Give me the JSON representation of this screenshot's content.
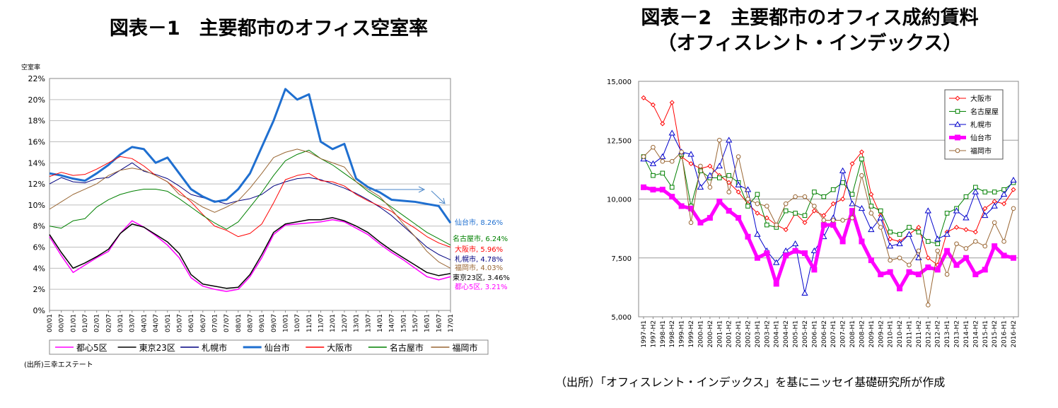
{
  "chart_data": [
    {
      "type": "line",
      "title": "図表－1　主要都市のオフィス空室率",
      "ylabel": "空室率",
      "ylim": [
        0,
        22
      ],
      "yticks": [
        "0%",
        "2%",
        "4%",
        "6%",
        "8%",
        "10%",
        "12%",
        "14%",
        "16%",
        "18%",
        "20%",
        "22%"
      ],
      "x": [
        "00/01",
        "00/07",
        "01/01",
        "01/07",
        "02/01",
        "02/07",
        "03/01",
        "03/07",
        "04/01",
        "04/07",
        "05/01",
        "05/07",
        "06/01",
        "06/07",
        "07/01",
        "07/07",
        "08/01",
        "08/07",
        "09/01",
        "09/07",
        "10/01",
        "10/07",
        "11/01",
        "11/07",
        "12/01",
        "12/07",
        "13/01",
        "13/07",
        "14/01",
        "14/07",
        "15/01",
        "15/07",
        "16/01",
        "16/07",
        "17/01"
      ],
      "legend_position": "bottom",
      "source": "(出所)三幸エステート",
      "series": [
        {
          "name": "都心5区",
          "color": "#ff00ff",
          "end_label": "都心5区, 3.21%",
          "values": [
            7.0,
            5.2,
            3.6,
            4.3,
            5.0,
            5.6,
            7.3,
            8.5,
            7.9,
            7.1,
            6.2,
            5.0,
            3.1,
            2.3,
            2.0,
            1.8,
            2.0,
            3.2,
            5.0,
            7.2,
            8.1,
            8.2,
            8.3,
            8.4,
            8.6,
            8.4,
            7.8,
            7.2,
            6.3,
            5.5,
            4.8,
            4.0,
            3.2,
            2.9,
            3.2
          ]
        },
        {
          "name": "東京23区",
          "color": "#000000",
          "end_label": "東京23区, 3.46%",
          "values": [
            7.2,
            5.5,
            4.0,
            4.5,
            5.1,
            5.8,
            7.3,
            8.2,
            7.9,
            7.2,
            6.5,
            5.4,
            3.4,
            2.5,
            2.3,
            2.1,
            2.2,
            3.4,
            5.3,
            7.4,
            8.2,
            8.4,
            8.6,
            8.6,
            8.8,
            8.5,
            8.0,
            7.4,
            6.5,
            5.7,
            5.0,
            4.3,
            3.6,
            3.3,
            3.5
          ]
        },
        {
          "name": "札幌市",
          "color": "#000080",
          "end_label": "札幌市, 4.78%",
          "values": [
            12.0,
            12.6,
            12.2,
            12.1,
            12.5,
            12.6,
            13.3,
            14.0,
            13.2,
            12.9,
            12.5,
            11.8,
            11.0,
            10.7,
            10.4,
            10.1,
            10.4,
            10.6,
            11.0,
            11.8,
            12.2,
            12.5,
            12.6,
            12.4,
            12.0,
            11.6,
            11.1,
            10.5,
            9.8,
            9.0,
            8.0,
            7.0,
            6.0,
            5.3,
            4.8
          ]
        },
        {
          "name": "仙台市",
          "color": "#1f6fd0",
          "end_label": "仙台市, 8.26%",
          "values": [
            13.0,
            12.8,
            12.5,
            12.3,
            13.0,
            13.8,
            14.8,
            15.5,
            15.3,
            14.0,
            14.5,
            13.0,
            11.5,
            10.8,
            10.3,
            10.5,
            11.5,
            13.0,
            15.5,
            18.0,
            21.0,
            20.0,
            20.5,
            16.0,
            15.3,
            15.8,
            12.5,
            11.7,
            11.2,
            10.5,
            10.4,
            10.3,
            10.1,
            9.9,
            8.3
          ]
        },
        {
          "name": "大阪市",
          "color": "#ff0000",
          "end_label": "大阪市, 5.96%",
          "values": [
            12.7,
            13.1,
            12.8,
            12.9,
            13.4,
            14.0,
            14.6,
            14.4,
            13.7,
            12.8,
            12.2,
            11.3,
            10.3,
            9.1,
            8.0,
            7.6,
            7.0,
            7.3,
            8.2,
            10.2,
            12.4,
            12.8,
            13.0,
            12.3,
            12.2,
            11.8,
            11.0,
            10.4,
            9.9,
            9.4,
            8.5,
            7.8,
            7.0,
            6.4,
            6.0
          ]
        },
        {
          "name": "名古屋市",
          "color": "#008000",
          "end_label": "名古屋市, 6.24%",
          "values": [
            8.0,
            7.8,
            8.5,
            8.7,
            9.8,
            10.5,
            11.0,
            11.3,
            11.5,
            11.5,
            11.3,
            10.6,
            9.8,
            9.0,
            8.3,
            7.7,
            8.4,
            9.8,
            11.2,
            12.8,
            14.2,
            14.8,
            15.2,
            14.4,
            13.8,
            13.0,
            12.2,
            11.3,
            10.6,
            9.8,
            9.0,
            8.2,
            7.4,
            6.8,
            6.2
          ]
        },
        {
          "name": "福岡市",
          "color": "#996633",
          "end_label": "福岡市, 4.03%",
          "values": [
            9.6,
            10.3,
            11.0,
            11.5,
            12.0,
            12.8,
            13.3,
            13.5,
            13.3,
            12.8,
            12.2,
            11.0,
            10.5,
            9.8,
            9.3,
            9.8,
            10.4,
            11.6,
            13.0,
            14.5,
            15.0,
            15.3,
            15.0,
            14.4,
            14.0,
            13.6,
            12.2,
            11.5,
            10.8,
            9.6,
            8.2,
            7.0,
            5.6,
            4.6,
            4.0
          ]
        }
      ]
    },
    {
      "type": "line",
      "title": "図表－2　主要都市のオフィス成約賃料",
      "subtitle": "（オフィスレント・インデックス）",
      "ylim": [
        5000,
        15000
      ],
      "yticks": [
        "5,000",
        "7,500",
        "10,000",
        "12,500",
        "15,000"
      ],
      "x": [
        "1997-H1",
        "1997-H2",
        "1998-H1",
        "1998-H2",
        "1999-H1",
        "1999-H2",
        "2000-H1",
        "2000-H2",
        "2001-H1",
        "2001-H2",
        "2002-H1",
        "2002-H2",
        "2003-H1",
        "2003-H2",
        "2004-H1",
        "2004-H2",
        "2005-H1",
        "2005-H2",
        "2006-H1",
        "2006-H2",
        "2007-H1",
        "2007-H2",
        "2008-H1",
        "2008-H2",
        "2009-H1",
        "2009-H2",
        "2010-H1",
        "2010-H2",
        "2011-H1",
        "2011-H2",
        "2012-H1",
        "2012-H2",
        "2013-H1",
        "2013-H2",
        "2014-H1",
        "2014-H2",
        "2015-H1",
        "2015-H2",
        "2016-H1",
        "2016-H2"
      ],
      "legend_position": "top-right",
      "source": "（出所）「オフィスレント・インデックス」を基にニッセイ基礎研究所が作成",
      "series": [
        {
          "name": "大阪市",
          "color": "#ff0000",
          "marker": "diamond",
          "values": [
            14300,
            14000,
            13200,
            14100,
            11800,
            11500,
            11300,
            11400,
            11000,
            10700,
            10300,
            9800,
            9400,
            9200,
            8900,
            8700,
            9400,
            9000,
            9500,
            9300,
            9800,
            10000,
            11500,
            12000,
            10200,
            9300,
            8300,
            8200,
            8500,
            8800,
            7500,
            7200,
            8600,
            8800,
            8700,
            8600,
            9600,
            9900,
            9800,
            10400
          ]
        },
        {
          "name": "名古屋屋",
          "color": "#008000",
          "marker": "square",
          "values": [
            11800,
            11000,
            11100,
            10500,
            11900,
            9700,
            11200,
            10900,
            10900,
            11000,
            10700,
            9700,
            10200,
            8900,
            8800,
            9500,
            9400,
            9300,
            10300,
            10100,
            10400,
            10700,
            10200,
            11700,
            9700,
            9500,
            8600,
            8500,
            8800,
            8600,
            8200,
            8100,
            9400,
            9600,
            10100,
            10500,
            10300,
            10300,
            10400,
            10700
          ]
        },
        {
          "name": "札幌市",
          "color": "#0000cc",
          "marker": "triangle",
          "values": [
            11700,
            11500,
            11800,
            12800,
            12000,
            11900,
            10500,
            11000,
            11400,
            12500,
            10600,
            10400,
            8500,
            7800,
            7300,
            7800,
            8100,
            6000,
            7800,
            8400,
            9200,
            11200,
            9800,
            9600,
            8700,
            9200,
            8000,
            8100,
            8500,
            7500,
            9500,
            8300,
            8500,
            9500,
            9200,
            10300,
            9300,
            9700,
            10200,
            10800
          ]
        },
        {
          "name": "仙台市",
          "color": "#ff00ff",
          "marker": "square",
          "values": [
            10500,
            10400,
            10400,
            10100,
            9700,
            9600,
            9000,
            9200,
            9900,
            9500,
            9200,
            8400,
            7500,
            7700,
            6400,
            7600,
            7800,
            7700,
            7000,
            8900,
            8900,
            8200,
            9500,
            8200,
            7400,
            6800,
            6900,
            6200,
            6900,
            6800,
            7100,
            7000,
            7800,
            7200,
            7500,
            6800,
            7000,
            8000,
            7600,
            7500
          ]
        },
        {
          "name": "福岡市",
          "color": "#996633",
          "marker": "circle",
          "values": [
            11800,
            12200,
            11600,
            11600,
            12000,
            9000,
            11400,
            10500,
            12500,
            10300,
            11800,
            10000,
            9800,
            9700,
            8900,
            9800,
            10100,
            10100,
            9700,
            9100,
            9100,
            9100,
            9200,
            11000,
            9400,
            8800,
            7400,
            7500,
            7200,
            7800,
            5500,
            7800,
            6800,
            8100,
            7900,
            8200,
            8000,
            9000,
            8200,
            9600
          ]
        }
      ]
    }
  ]
}
